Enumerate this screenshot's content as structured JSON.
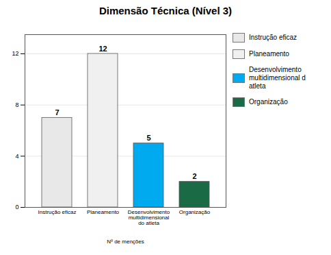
{
  "chart_data": {
    "type": "bar",
    "title": "Dimensão Técnica (Nível 3)",
    "xlabel": "Nº de menções",
    "categories": [
      "Instrução eficaz",
      "Planeamento",
      "Desenvolvimento\nmultidimensional\ndo atleta",
      "Organização"
    ],
    "values": [
      7,
      12,
      5,
      2
    ],
    "colors": [
      "#e8e8e8",
      "#f0f0f0",
      "#00aaee",
      "#1a6b45"
    ],
    "legend_labels": [
      "Instrução eficaz",
      "Planeamento",
      "Desenvolvimento multidimensional d\natleta",
      "Organização"
    ],
    "ylim": [
      0,
      13.5
    ],
    "yticks": [
      0,
      4,
      8,
      12
    ],
    "grid": true,
    "data_labels": true,
    "legend": "right"
  }
}
